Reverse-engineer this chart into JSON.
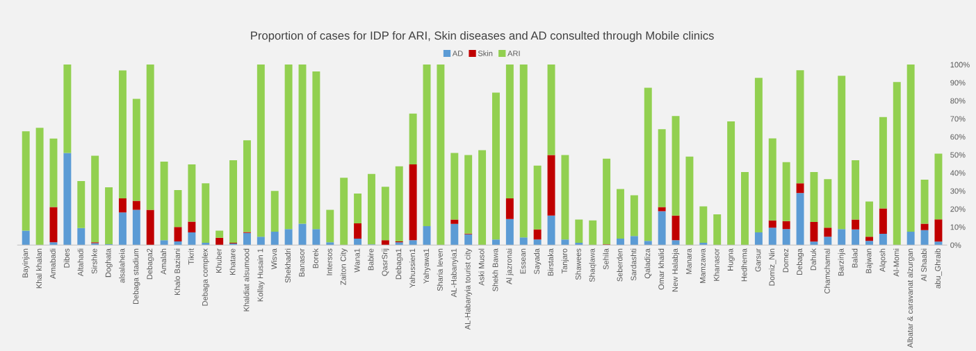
{
  "chart_data": {
    "type": "bar",
    "title": "Proportion of cases for IDP for ARI, Skin diseases and AD consulted through Mobile clinics",
    "categories": [
      "Bayinjan",
      "Khal khalan",
      "Amabadi",
      "Dibes",
      "Altahadi",
      "Sirshke",
      "Doghata",
      "alsalaheia",
      "Debaga stadium",
      "Debaga2",
      "Amalah",
      "Khalo Baziani",
      "Tikrit",
      "Debaga complex",
      "Khuber",
      "Khatare",
      "Khaldiat alsumood",
      "Kollay Husain 1",
      "Wisva",
      "Shekhadri",
      "Banasor",
      "Borek",
      "Intersos",
      "Zaiton City",
      "Wana1",
      "Babire",
      "QasrSrij",
      "Debaga1",
      "Yahussien1",
      "Yahyawa1",
      "Sharia leven",
      "AL-Habanyia1",
      "AL-Habanyia tourist city",
      "Aski Musol",
      "Shekh Bawa",
      "Al jazronai",
      "Essean",
      "Sayada",
      "Birstaka",
      "Tanjaro",
      "Shawees",
      "Shaqlawa",
      "Sehila",
      "Seberden",
      "Sardashti",
      "Qaladiza",
      "Omar khalid",
      "New Halabja",
      "Manara",
      "Mamzawa",
      "Khanasor",
      "Hugna",
      "Hedhema",
      "Garsur",
      "Domiz_Nin",
      "Domez",
      "Debaga",
      "Dahuk",
      "Chamchamal",
      "Barzinja",
      "Balad",
      "Bajwan",
      "Alqosh",
      "Al-Momi",
      "Albatar & caravanat alzurgan",
      "Al Shaabi",
      "abu_Ghraib"
    ],
    "stacked": true,
    "series": [
      {
        "name": "AD",
        "color": "#5b9bd5",
        "values": [
          8,
          0,
          1.5,
          51,
          9.4,
          1,
          0.5,
          18,
          19.5,
          0,
          2.7,
          2,
          7,
          1.2,
          0,
          0.8,
          6.7,
          4.6,
          7.4,
          8.8,
          11.8,
          8.8,
          1.5,
          0,
          3.5,
          0.4,
          0,
          1.5,
          2.7,
          10.5,
          0,
          11.7,
          5.9,
          0,
          3.1,
          14.4,
          4.2,
          3.1,
          16.3,
          3.1,
          1.2,
          0,
          0,
          3.5,
          5,
          2.3,
          18.7,
          2.7,
          0,
          1.2,
          0,
          0,
          0,
          7,
          9.6,
          8.8,
          28.8,
          1.9,
          4.6,
          8.8,
          8.6,
          2.3,
          6.2,
          0,
          7.4,
          8.2,
          1.9
        ]
      },
      {
        "name": "Skin",
        "color": "#c00000",
        "values": [
          0,
          0,
          19.5,
          0,
          0,
          0.5,
          0,
          7.8,
          5,
          19.5,
          0,
          8,
          6,
          0,
          4,
          0.4,
          0.5,
          0,
          0,
          0,
          0,
          0,
          0,
          0,
          8.5,
          0,
          2.7,
          0.5,
          42,
          0,
          0,
          2.4,
          0.4,
          0,
          0,
          11.4,
          0,
          5.5,
          33.6,
          0,
          0,
          0,
          0.4,
          0,
          0,
          0,
          2.3,
          13.6,
          0,
          0,
          0,
          0,
          0,
          0,
          4,
          4.4,
          5.4,
          10.9,
          5,
          0,
          5.5,
          2.3,
          14.1,
          0,
          0,
          3.6,
          12.3
        ]
      },
      {
        "name": "ARI",
        "color": "#92d050",
        "values": [
          55,
          65,
          38,
          49,
          26,
          48,
          31.5,
          71,
          56.5,
          80.5,
          43.5,
          20.4,
          31.7,
          33,
          4,
          45.8,
          50.8,
          95.4,
          22.6,
          91.2,
          88.2,
          87.4,
          18,
          37.3,
          16.5,
          39,
          29.6,
          41.6,
          28.1,
          89.5,
          100,
          36.9,
          43.6,
          52.6,
          81.4,
          74.2,
          95.8,
          35.4,
          50.1,
          46.8,
          12.9,
          13.6,
          47.4,
          27.5,
          22.6,
          84.9,
          43.2,
          55.2,
          49,
          20.2,
          17,
          68.5,
          40.4,
          85.6,
          45.5,
          32.7,
          62.7,
          27.6,
          26.9,
          85,
          32.9,
          19.5,
          50.6,
          90.3,
          92.6,
          24.4,
          36.4
        ]
      }
    ],
    "ylim": [
      0,
      100
    ],
    "yticks": [
      {
        "value": 0,
        "label": "0%"
      },
      {
        "value": 10,
        "label": "10%"
      },
      {
        "value": 20,
        "label": "20%"
      },
      {
        "value": 30,
        "label": "30%"
      },
      {
        "value": 40,
        "label": "40%"
      },
      {
        "value": 50,
        "label": "50%"
      },
      {
        "value": 60,
        "label": "60%"
      },
      {
        "value": 70,
        "label": "70%"
      },
      {
        "value": 80,
        "label": "80%"
      },
      {
        "value": 90,
        "label": "90%"
      },
      {
        "value": 100,
        "label": "100%"
      }
    ],
    "grid": false,
    "legend": "top"
  }
}
